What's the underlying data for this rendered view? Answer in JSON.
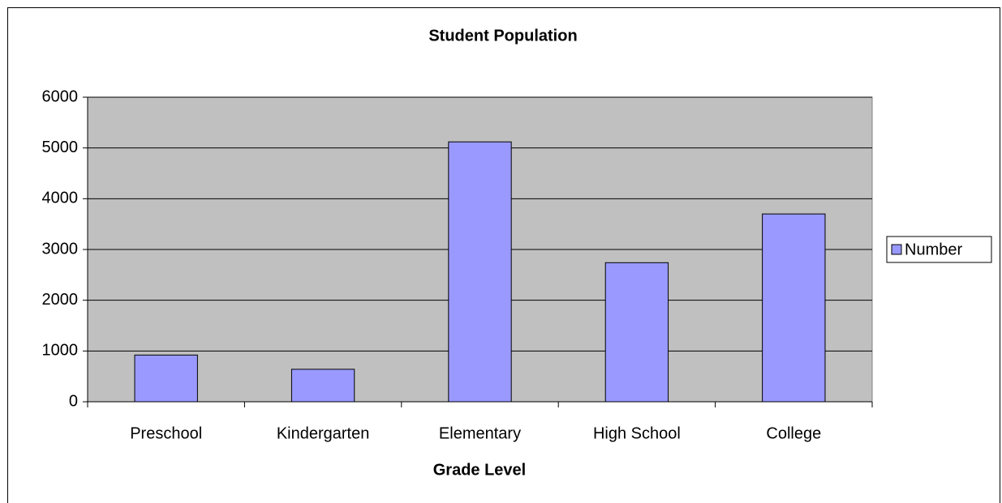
{
  "chart_data": {
    "type": "bar",
    "title": "Student Population",
    "x_label": "Grade Level",
    "categories": [
      "Preschool",
      "Kindergarten",
      "Elementary",
      "High School",
      "College"
    ],
    "series": [
      {
        "name": "Number",
        "color": "#9999ff",
        "values": [
          920,
          640,
          5120,
          2740,
          3700
        ]
      }
    ],
    "ylim": [
      0,
      6000
    ],
    "yticks": [
      0,
      1000,
      2000,
      3000,
      4000,
      5000,
      6000
    ],
    "grid": true,
    "legend": "right",
    "plot_background": "#c0c0c0"
  }
}
